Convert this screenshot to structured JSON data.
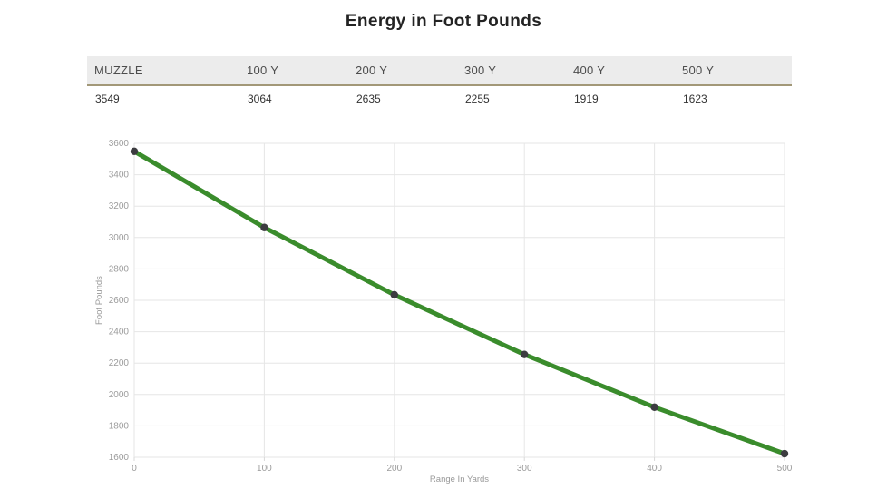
{
  "page": {
    "title": "Energy in Foot Pounds"
  },
  "table": {
    "headers": [
      "MUZZLE",
      "100 Y",
      "200 Y",
      "300 Y",
      "400 Y",
      "500 Y"
    ],
    "values": [
      "3549",
      "3064",
      "2635",
      "2255",
      "1919",
      "1623"
    ]
  },
  "chart_data": {
    "type": "line",
    "title": "",
    "x": [
      0,
      100,
      200,
      300,
      400,
      500
    ],
    "values": [
      3549,
      3064,
      2635,
      2255,
      1919,
      1623
    ],
    "xlabel": "Range In Yards",
    "ylabel": "Foot Pounds",
    "xlim": [
      0,
      500
    ],
    "ylim": [
      1600,
      3600
    ],
    "x_ticks": [
      0,
      100,
      200,
      300,
      400,
      500
    ],
    "y_ticks": [
      1600,
      1800,
      2000,
      2200,
      2400,
      2600,
      2800,
      3000,
      3200,
      3400,
      3600
    ],
    "grid": true,
    "legend": "none",
    "line_color": "#3a8c2c",
    "marker_color": "#3c3c40",
    "grid_color": "#e6e6e6",
    "tick_label_color": "#9b9b9b",
    "axis_title_color": "#999999"
  }
}
